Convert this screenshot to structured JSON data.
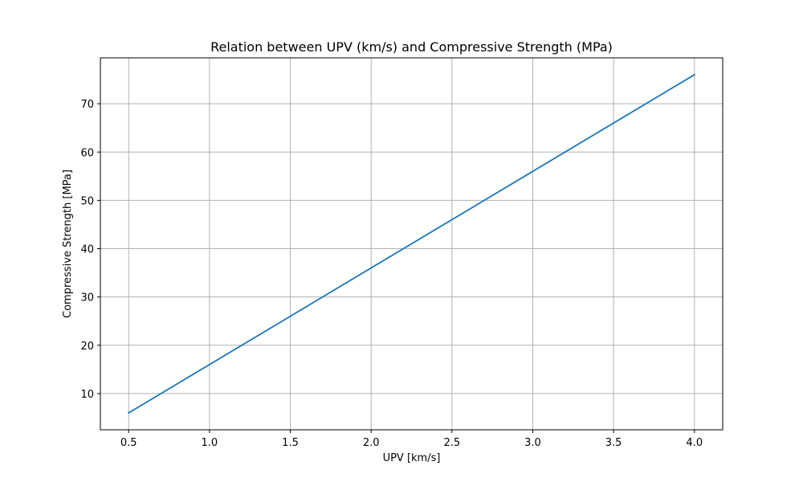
{
  "chart_data": {
    "type": "line",
    "title": "Relation between UPV (km/s) and Compressive Strength (MPa)",
    "xlabel": "UPV [km/s]",
    "ylabel": "Compressive Strength [MPa]",
    "xlim": [
      0.325,
      4.175
    ],
    "ylim": [
      2.5,
      79.5
    ],
    "xticks": [
      0.5,
      1.0,
      1.5,
      2.0,
      2.5,
      3.0,
      3.5,
      4.0
    ],
    "xtick_labels": [
      "0.5",
      "1.0",
      "1.5",
      "2.0",
      "2.5",
      "3.0",
      "3.5",
      "4.0"
    ],
    "yticks": [
      10,
      20,
      30,
      40,
      50,
      60,
      70
    ],
    "ytick_labels": [
      "10",
      "20",
      "30",
      "40",
      "50",
      "60",
      "70"
    ],
    "grid": true,
    "series": [
      {
        "color": "#1f77b4",
        "x": [
          0.5,
          4.0
        ],
        "y": [
          6,
          76
        ]
      }
    ]
  }
}
